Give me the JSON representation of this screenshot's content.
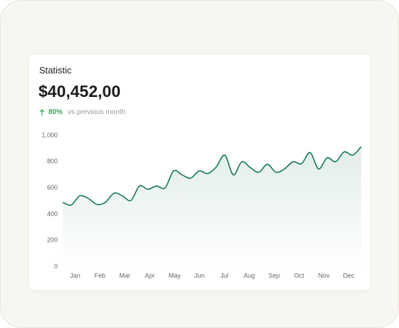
{
  "header": {
    "title": "Statistic",
    "amount": "$40,452,00",
    "change": "80%",
    "change_note": "vs previous month"
  },
  "chart_data": {
    "type": "line",
    "xticks": [
      "Jan",
      "Feb",
      "Mar",
      "Apr",
      "May",
      "Jun",
      "Jul",
      "Aug",
      "Sep",
      "Oct",
      "Nov",
      "Dec"
    ],
    "series": [
      {
        "color": "#17775a",
        "values": [
          490,
          470,
          540,
          520,
          475,
          490,
          560,
          540,
          505,
          615,
          590,
          615,
          600,
          730,
          700,
          675,
          730,
          710,
          760,
          850,
          700,
          800,
          755,
          720,
          780,
          720,
          745,
          800,
          785,
          870,
          745,
          830,
          800,
          875,
          850,
          915
        ]
      }
    ],
    "ylim": [
      0,
      1000
    ],
    "yticks": [
      0,
      200,
      400,
      600,
      800,
      {
        "value": 1000,
        "label": "1,000"
      }
    ]
  }
}
